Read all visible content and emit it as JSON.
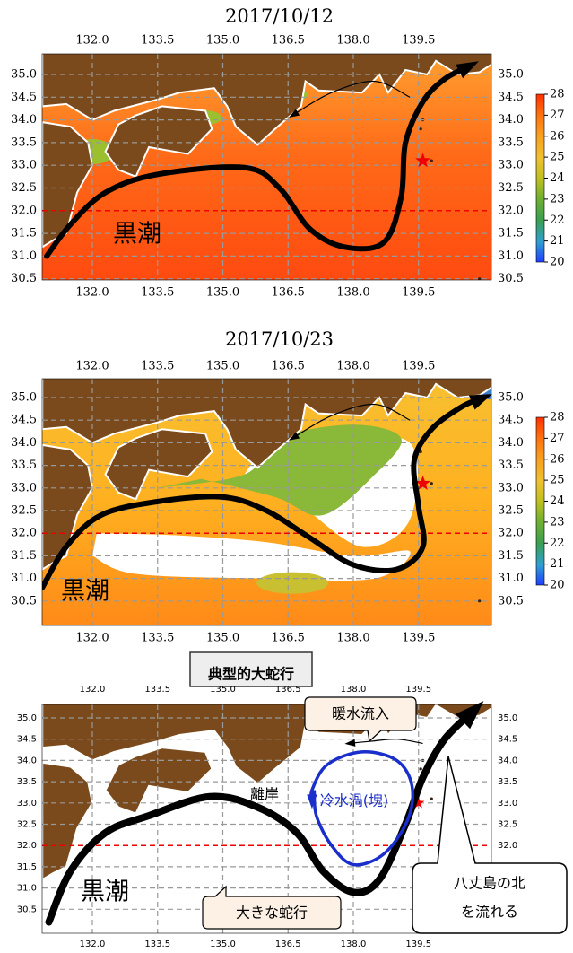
{
  "panels": [
    {
      "title": "2017/10/12",
      "lon_ticks": [
        "132.0",
        "133.5",
        "135.0",
        "136.5",
        "138.0",
        "139.5"
      ],
      "lat_ticks": [
        "35.0",
        "34.5",
        "34.0",
        "33.5",
        "33.0",
        "32.5",
        "32.0",
        "31.5",
        "31.0",
        "30.5"
      ],
      "colorbar_ticks": [
        28,
        27,
        26,
        25,
        24,
        23,
        22,
        21,
        20
      ],
      "current_label": "黒潮"
    },
    {
      "title": "2017/10/23",
      "lon_ticks": [
        "132.0",
        "133.5",
        "135.0",
        "136.5",
        "138.0",
        "139.5"
      ],
      "lat_ticks": [
        "35.0",
        "34.5",
        "34.0",
        "33.5",
        "33.0",
        "32.5",
        "32.0",
        "31.5",
        "31.0",
        "30.5"
      ],
      "colorbar_ticks": [
        28,
        27,
        26,
        25,
        24,
        23,
        22,
        21,
        20
      ],
      "current_label": "黒潮"
    },
    {
      "title": "典型的大蛇行",
      "lon_ticks": [
        "132.0",
        "133.5",
        "135.0",
        "136.5",
        "138.0",
        "139.5"
      ],
      "lat_ticks": [
        "35.0",
        "34.5",
        "34.0",
        "33.5",
        "33.0",
        "32.5",
        "32.0",
        "31.5",
        "31.0",
        "30.5"
      ],
      "current_label": "黒潮",
      "callouts": {
        "warm_inflow": "暖水流入",
        "detachment": "離岸",
        "cold_eddy": "冷水渦(塊)",
        "large_meander": "大きな蛇行",
        "hachijo": [
          "八丈島の北",
          "を流れる"
        ]
      }
    }
  ]
}
